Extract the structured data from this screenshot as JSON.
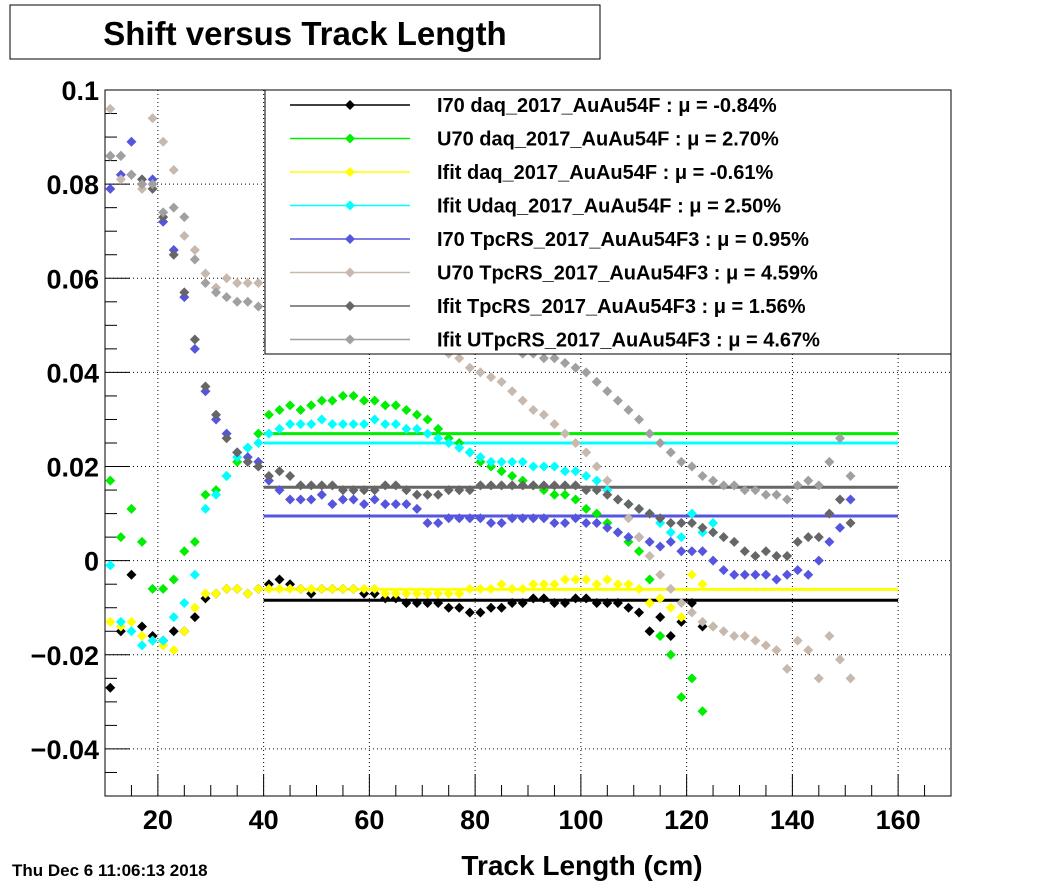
{
  "chart_data": {
    "type": "scatter",
    "title": "Shift versus Track Length",
    "xlabel": "Track Length (cm)",
    "ylabel": "",
    "xlim": [
      10,
      170
    ],
    "ylim": [
      -0.05,
      0.1
    ],
    "x_ticks": [
      20,
      40,
      60,
      80,
      100,
      120,
      140,
      160
    ],
    "x_tick_labels": [
      "20",
      "40",
      "60",
      "80",
      "100",
      "120",
      "140",
      "160"
    ],
    "y_ticks": [
      -0.04,
      -0.02,
      0,
      0.02,
      0.04,
      0.06,
      0.08,
      0.1
    ],
    "y_tick_labels": [
      "−0.04",
      "−0.02",
      "0",
      "0.02",
      "0.04",
      "0.06",
      "0.08",
      "0.1"
    ],
    "grid": true,
    "legend_position": "top-right",
    "timestamp": "Thu Dec  6 11:06:13 2018",
    "fit_range": [
      40,
      160
    ],
    "series": [
      {
        "name": "I70  daq_2017_AuAu54F",
        "mu": "μ = -0.84%",
        "color": "#000000",
        "fit": -0.0084,
        "x": [
          11,
          13,
          15,
          17,
          19,
          21,
          23,
          25,
          27,
          29,
          31,
          33,
          35,
          37,
          39,
          41,
          43,
          45,
          47,
          49,
          51,
          53,
          55,
          57,
          59,
          61,
          63,
          65,
          67,
          69,
          71,
          73,
          75,
          77,
          79,
          81,
          83,
          85,
          87,
          89,
          91,
          93,
          95,
          97,
          99,
          101,
          103,
          105,
          107,
          109,
          111,
          113,
          115,
          117,
          119,
          121,
          123
        ],
        "y": [
          -0.027,
          -0.015,
          -0.003,
          -0.014,
          -0.016,
          -0.017,
          -0.015,
          -0.015,
          -0.012,
          -0.008,
          -0.007,
          -0.006,
          -0.006,
          -0.007,
          -0.006,
          -0.005,
          -0.004,
          -0.005,
          -0.006,
          -0.007,
          -0.006,
          -0.006,
          -0.006,
          -0.006,
          -0.007,
          -0.007,
          -0.008,
          -0.008,
          -0.009,
          -0.009,
          -0.009,
          -0.009,
          -0.01,
          -0.01,
          -0.011,
          -0.011,
          -0.01,
          -0.01,
          -0.009,
          -0.009,
          -0.008,
          -0.008,
          -0.009,
          -0.009,
          -0.008,
          -0.008,
          -0.009,
          -0.009,
          -0.009,
          -0.01,
          -0.011,
          -0.015,
          -0.012,
          -0.016,
          -0.013,
          -0.009,
          -0.014
        ]
      },
      {
        "name": "U70  daq_2017_AuAu54F",
        "mu": "μ =  2.70%",
        "color": "#00ee00",
        "fit": 0.027,
        "x": [
          11,
          13,
          15,
          17,
          19,
          21,
          23,
          25,
          27,
          29,
          31,
          33,
          35,
          37,
          39,
          41,
          43,
          45,
          47,
          49,
          51,
          53,
          55,
          57,
          59,
          61,
          63,
          65,
          67,
          69,
          71,
          73,
          75,
          77,
          79,
          81,
          83,
          85,
          87,
          89,
          91,
          93,
          95,
          97,
          99,
          101,
          103,
          105,
          107,
          109,
          111,
          113,
          115,
          117,
          119,
          121,
          123,
          125
        ],
        "y": [
          0.017,
          0.005,
          0.011,
          0.004,
          -0.006,
          -0.006,
          -0.004,
          0.002,
          0.004,
          0.014,
          0.015,
          0.018,
          0.021,
          0.024,
          0.027,
          0.031,
          0.032,
          0.033,
          0.032,
          0.033,
          0.034,
          0.034,
          0.035,
          0.035,
          0.034,
          0.034,
          0.033,
          0.033,
          0.032,
          0.031,
          0.03,
          0.028,
          0.026,
          0.025,
          0.023,
          0.021,
          0.02,
          0.019,
          0.018,
          0.017,
          0.016,
          0.015,
          0.014,
          0.014,
          0.013,
          0.011,
          0.01,
          0.008,
          0.006,
          0.004,
          0.002,
          -0.004,
          -0.016,
          -0.02,
          -0.029,
          -0.025,
          -0.032,
          -0.014
        ]
      },
      {
        "name": "Ifit daq_2017_AuAu54F",
        "mu": "μ = -0.61%",
        "color": "#ffff00",
        "fit": -0.0061,
        "x": [
          11,
          13,
          15,
          17,
          19,
          21,
          23,
          25,
          27,
          29,
          31,
          33,
          35,
          37,
          39,
          41,
          43,
          45,
          47,
          49,
          51,
          53,
          55,
          57,
          59,
          61,
          63,
          65,
          67,
          69,
          71,
          73,
          75,
          77,
          79,
          81,
          83,
          85,
          87,
          89,
          91,
          93,
          95,
          97,
          99,
          101,
          103,
          105,
          107,
          109,
          111,
          113,
          115,
          117,
          119,
          121,
          123
        ],
        "y": [
          -0.013,
          -0.014,
          -0.013,
          -0.016,
          -0.017,
          -0.018,
          -0.019,
          -0.015,
          -0.01,
          -0.007,
          -0.007,
          -0.006,
          -0.006,
          -0.007,
          -0.006,
          -0.006,
          -0.006,
          -0.006,
          -0.006,
          -0.006,
          -0.006,
          -0.006,
          -0.006,
          -0.006,
          -0.006,
          -0.006,
          -0.007,
          -0.007,
          -0.007,
          -0.007,
          -0.007,
          -0.007,
          -0.007,
          -0.007,
          -0.006,
          -0.006,
          -0.006,
          -0.005,
          -0.006,
          -0.006,
          -0.005,
          -0.005,
          -0.005,
          -0.004,
          -0.004,
          -0.004,
          -0.005,
          -0.004,
          -0.005,
          -0.005,
          -0.006,
          -0.009,
          -0.008,
          -0.01,
          -0.012,
          -0.003,
          -0.005
        ]
      },
      {
        "name": "Ifit Udaq_2017_AuAu54F",
        "mu": "μ =  2.50%",
        "color": "#00ffff",
        "fit": 0.025,
        "x": [
          11,
          13,
          15,
          17,
          19,
          21,
          23,
          25,
          27,
          29,
          31,
          33,
          35,
          37,
          39,
          41,
          43,
          45,
          47,
          49,
          51,
          53,
          55,
          57,
          59,
          61,
          63,
          65,
          67,
          69,
          71,
          73,
          75,
          77,
          79,
          81,
          83,
          85,
          87,
          89,
          91,
          93,
          95,
          97,
          99,
          101,
          103,
          105,
          107,
          109,
          111,
          113,
          115,
          117,
          119,
          121,
          123,
          125
        ],
        "y": [
          -0.001,
          -0.013,
          -0.015,
          -0.018,
          -0.017,
          -0.017,
          -0.012,
          -0.009,
          -0.003,
          0.011,
          0.014,
          0.018,
          0.022,
          0.024,
          0.025,
          0.027,
          0.028,
          0.029,
          0.029,
          0.029,
          0.03,
          0.029,
          0.029,
          0.029,
          0.029,
          0.03,
          0.029,
          0.029,
          0.028,
          0.028,
          0.027,
          0.026,
          0.025,
          0.024,
          0.023,
          0.022,
          0.021,
          0.021,
          0.021,
          0.021,
          0.02,
          0.02,
          0.02,
          0.019,
          0.019,
          0.018,
          0.017,
          0.015,
          0.013,
          0.012,
          0.011,
          0.01,
          0.008,
          0.006,
          0.005,
          0.01,
          0.006,
          0.008
        ]
      },
      {
        "name": "I70  TpcRS_2017_AuAu54F3",
        "mu": "μ =  0.95%",
        "color": "#5555dd",
        "fit": 0.0095,
        "x": [
          11,
          13,
          15,
          17,
          19,
          21,
          23,
          25,
          27,
          29,
          31,
          33,
          35,
          37,
          39,
          41,
          43,
          45,
          47,
          49,
          51,
          53,
          55,
          57,
          59,
          61,
          63,
          65,
          67,
          69,
          71,
          73,
          75,
          77,
          79,
          81,
          83,
          85,
          87,
          89,
          91,
          93,
          95,
          97,
          99,
          101,
          103,
          105,
          107,
          109,
          111,
          113,
          115,
          117,
          119,
          121,
          123,
          125,
          127,
          129,
          131,
          133,
          135,
          137,
          139,
          141,
          143,
          145,
          147,
          149,
          151
        ],
        "y": [
          0.079,
          0.082,
          0.089,
          0.08,
          0.081,
          0.072,
          0.066,
          0.056,
          0.045,
          0.036,
          0.03,
          0.027,
          0.023,
          0.022,
          0.021,
          0.017,
          0.015,
          0.013,
          0.013,
          0.013,
          0.014,
          0.012,
          0.013,
          0.013,
          0.012,
          0.013,
          0.012,
          0.012,
          0.012,
          0.011,
          0.008,
          0.008,
          0.009,
          0.009,
          0.009,
          0.009,
          0.008,
          0.008,
          0.009,
          0.009,
          0.009,
          0.009,
          0.008,
          0.008,
          0.009,
          0.008,
          0.008,
          0.007,
          0.006,
          0.005,
          0.005,
          0.004,
          0.003,
          0.004,
          0.002,
          0.002,
          0.002,
          0.0,
          -0.002,
          -0.003,
          -0.003,
          -0.003,
          -0.003,
          -0.004,
          -0.003,
          -0.002,
          -0.003,
          0.0,
          0.004,
          0.007,
          0.013
        ]
      },
      {
        "name": "U70  TpcRS_2017_AuAu54F3",
        "mu": "μ =  4.59%",
        "color": "#c8b9ae",
        "fit": 0.0459,
        "x": [
          11,
          13,
          15,
          17,
          19,
          21,
          23,
          25,
          27,
          29,
          31,
          33,
          35,
          37,
          39,
          41,
          43,
          45,
          47,
          49,
          51,
          53,
          55,
          57,
          59,
          61,
          63,
          65,
          67,
          69,
          71,
          73,
          75,
          77,
          79,
          81,
          83,
          85,
          87,
          89,
          91,
          93,
          95,
          97,
          99,
          101,
          103,
          105,
          107,
          109,
          111,
          113,
          115,
          117,
          119,
          121,
          123,
          125,
          127,
          129,
          131,
          133,
          135,
          137,
          139,
          141,
          143,
          145,
          147,
          149,
          151
        ],
        "y": [
          0.096,
          0.081,
          0.082,
          0.079,
          0.094,
          0.089,
          0.083,
          0.069,
          0.066,
          0.061,
          0.058,
          0.06,
          0.059,
          0.059,
          0.059,
          0.058,
          0.059,
          0.058,
          0.058,
          0.057,
          0.056,
          0.056,
          0.055,
          0.054,
          0.053,
          0.052,
          0.051,
          0.05,
          0.049,
          0.048,
          0.046,
          0.045,
          0.044,
          0.043,
          0.041,
          0.04,
          0.039,
          0.038,
          0.036,
          0.034,
          0.032,
          0.031,
          0.029,
          0.027,
          0.025,
          0.023,
          0.02,
          0.017,
          0.013,
          0.009,
          0.005,
          0.001,
          -0.003,
          -0.006,
          -0.009,
          -0.011,
          -0.013,
          -0.014,
          -0.015,
          -0.016,
          -0.016,
          -0.017,
          -0.018,
          -0.019,
          -0.023,
          -0.017,
          -0.019,
          -0.025,
          -0.016,
          -0.021,
          -0.025
        ]
      },
      {
        "name": "Ifit TpcRS_2017_AuAu54F3",
        "mu": "μ =  1.56%",
        "color": "#666666",
        "fit": 0.0156,
        "x": [
          11,
          13,
          15,
          17,
          19,
          21,
          23,
          25,
          27,
          29,
          31,
          33,
          35,
          37,
          39,
          41,
          43,
          45,
          47,
          49,
          51,
          53,
          55,
          57,
          59,
          61,
          63,
          65,
          67,
          69,
          71,
          73,
          75,
          77,
          79,
          81,
          83,
          85,
          87,
          89,
          91,
          93,
          95,
          97,
          99,
          101,
          103,
          105,
          107,
          109,
          111,
          113,
          115,
          117,
          119,
          121,
          123,
          125,
          127,
          129,
          131,
          133,
          135,
          137,
          139,
          141,
          143,
          145,
          147,
          149,
          151
        ],
        "y": [
          0.086,
          0.086,
          0.082,
          0.081,
          0.079,
          0.073,
          0.065,
          0.057,
          0.047,
          0.037,
          0.031,
          0.026,
          0.023,
          0.021,
          0.02,
          0.018,
          0.019,
          0.018,
          0.016,
          0.016,
          0.016,
          0.016,
          0.015,
          0.015,
          0.015,
          0.015,
          0.016,
          0.016,
          0.015,
          0.014,
          0.014,
          0.014,
          0.015,
          0.015,
          0.015,
          0.016,
          0.016,
          0.016,
          0.016,
          0.016,
          0.016,
          0.016,
          0.016,
          0.016,
          0.016,
          0.015,
          0.015,
          0.014,
          0.013,
          0.012,
          0.011,
          0.01,
          0.009,
          0.008,
          0.008,
          0.008,
          0.007,
          0.006,
          0.005,
          0.004,
          0.002,
          0.001,
          0.002,
          0.001,
          0.001,
          0.004,
          0.005,
          0.005,
          0.01,
          0.013,
          0.008
        ]
      },
      {
        "name": "Ifit UTpcRS_2017_AuAu54F3",
        "mu": "μ =  4.67%",
        "color": "#a0a0a0",
        "fit": 0.0467,
        "x": [
          11,
          13,
          15,
          17,
          19,
          21,
          23,
          25,
          27,
          29,
          31,
          33,
          35,
          37,
          39,
          41,
          43,
          45,
          47,
          49,
          51,
          53,
          55,
          57,
          59,
          61,
          63,
          65,
          67,
          69,
          71,
          73,
          75,
          77,
          79,
          81,
          83,
          85,
          87,
          89,
          91,
          93,
          95,
          97,
          99,
          101,
          103,
          105,
          107,
          109,
          111,
          113,
          115,
          117,
          119,
          121,
          123,
          125,
          127,
          129,
          131,
          133,
          135,
          137,
          139,
          141,
          143,
          145,
          147,
          149,
          151
        ],
        "y": [
          0.086,
          0.086,
          0.082,
          0.08,
          0.08,
          0.074,
          0.075,
          0.073,
          0.064,
          0.059,
          0.057,
          0.056,
          0.055,
          0.055,
          0.054,
          0.054,
          0.054,
          0.054,
          0.054,
          0.054,
          0.053,
          0.053,
          0.052,
          0.052,
          0.051,
          0.051,
          0.05,
          0.05,
          0.049,
          0.049,
          0.048,
          0.048,
          0.047,
          0.047,
          0.046,
          0.046,
          0.046,
          0.045,
          0.045,
          0.044,
          0.044,
          0.043,
          0.043,
          0.042,
          0.041,
          0.04,
          0.038,
          0.036,
          0.034,
          0.032,
          0.03,
          0.027,
          0.025,
          0.023,
          0.021,
          0.02,
          0.018,
          0.017,
          0.016,
          0.016,
          0.015,
          0.015,
          0.014,
          0.014,
          0.013,
          0.016,
          0.017,
          0.016,
          0.021,
          0.026,
          0.018
        ]
      }
    ]
  }
}
